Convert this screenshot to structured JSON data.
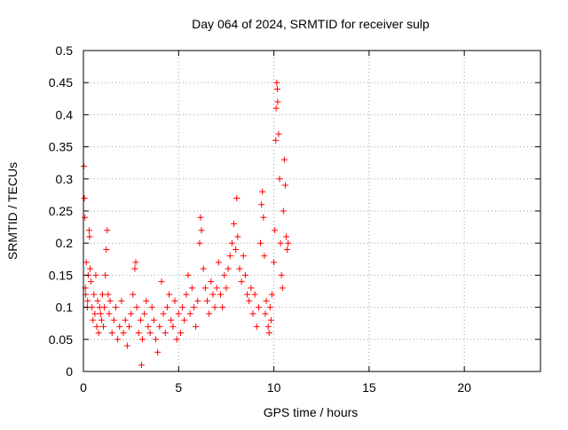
{
  "chart_data": {
    "type": "scatter",
    "title": "Day 064 of 2024, SRMTID for receiver sulp",
    "xlabel": "GPS time / hours",
    "ylabel": "SRMTID / TECUs",
    "xlim": [
      0,
      24
    ],
    "ylim": [
      0,
      0.5
    ],
    "xticks": [
      0,
      5,
      10,
      15,
      20
    ],
    "xtick_labels": [
      "0",
      "5",
      "10",
      "15",
      "20"
    ],
    "yticks": [
      0,
      0.05,
      0.1,
      0.15,
      0.2,
      0.25,
      0.3,
      0.35,
      0.4,
      0.45,
      0.5
    ],
    "ytick_labels": [
      "0",
      "0.05",
      "0.1",
      "0.15",
      "0.2",
      "0.25",
      "0.3",
      "0.35",
      "0.4",
      "0.45",
      "0.5"
    ],
    "grid": true,
    "marker": "+",
    "color": "#ff0000",
    "series": [
      {
        "name": "sulp",
        "points": [
          [
            0.02,
            0.32
          ],
          [
            0.05,
            0.27
          ],
          [
            0.08,
            0.24
          ],
          [
            0.1,
            0.13
          ],
          [
            0.12,
            0.12
          ],
          [
            0.15,
            0.17
          ],
          [
            0.2,
            0.1
          ],
          [
            0.22,
            0.11
          ],
          [
            0.25,
            0.15
          ],
          [
            0.3,
            0.22
          ],
          [
            0.32,
            0.21
          ],
          [
            0.35,
            0.16
          ],
          [
            0.4,
            0.14
          ],
          [
            0.45,
            0.1
          ],
          [
            0.5,
            0.08
          ],
          [
            0.55,
            0.12
          ],
          [
            0.6,
            0.09
          ],
          [
            0.65,
            0.15
          ],
          [
            0.7,
            0.07
          ],
          [
            0.75,
            0.11
          ],
          [
            0.8,
            0.06
          ],
          [
            0.85,
            0.1
          ],
          [
            0.9,
            0.09
          ],
          [
            0.95,
            0.08
          ],
          [
            1.0,
            0.12
          ],
          [
            1.05,
            0.07
          ],
          [
            1.1,
            0.1
          ],
          [
            1.15,
            0.15
          ],
          [
            1.2,
            0.19
          ],
          [
            1.25,
            0.22
          ],
          [
            1.3,
            0.12
          ],
          [
            1.35,
            0.09
          ],
          [
            1.4,
            0.11
          ],
          [
            1.5,
            0.06
          ],
          [
            1.6,
            0.08
          ],
          [
            1.7,
            0.1
          ],
          [
            1.8,
            0.05
          ],
          [
            1.9,
            0.07
          ],
          [
            2.0,
            0.11
          ],
          [
            2.1,
            0.06
          ],
          [
            2.2,
            0.08
          ],
          [
            2.3,
            0.04
          ],
          [
            2.4,
            0.07
          ],
          [
            2.5,
            0.09
          ],
          [
            2.6,
            0.12
          ],
          [
            2.7,
            0.16
          ],
          [
            2.75,
            0.17
          ],
          [
            2.8,
            0.1
          ],
          [
            2.9,
            0.06
          ],
          [
            3.0,
            0.08
          ],
          [
            3.05,
            0.01
          ],
          [
            3.1,
            0.05
          ],
          [
            3.2,
            0.09
          ],
          [
            3.3,
            0.11
          ],
          [
            3.4,
            0.07
          ],
          [
            3.5,
            0.06
          ],
          [
            3.6,
            0.1
          ],
          [
            3.7,
            0.08
          ],
          [
            3.8,
            0.05
          ],
          [
            3.9,
            0.03
          ],
          [
            4.0,
            0.07
          ],
          [
            4.1,
            0.14
          ],
          [
            4.2,
            0.09
          ],
          [
            4.3,
            0.06
          ],
          [
            4.4,
            0.1
          ],
          [
            4.5,
            0.12
          ],
          [
            4.6,
            0.08
          ],
          [
            4.7,
            0.07
          ],
          [
            4.8,
            0.11
          ],
          [
            4.9,
            0.05
          ],
          [
            5.0,
            0.09
          ],
          [
            5.1,
            0.06
          ],
          [
            5.2,
            0.1
          ],
          [
            5.3,
            0.08
          ],
          [
            5.4,
            0.12
          ],
          [
            5.5,
            0.15
          ],
          [
            5.6,
            0.09
          ],
          [
            5.7,
            0.13
          ],
          [
            5.8,
            0.1
          ],
          [
            5.9,
            0.07
          ],
          [
            6.0,
            0.11
          ],
          [
            6.1,
            0.2
          ],
          [
            6.15,
            0.24
          ],
          [
            6.2,
            0.22
          ],
          [
            6.3,
            0.16
          ],
          [
            6.4,
            0.13
          ],
          [
            6.5,
            0.11
          ],
          [
            6.6,
            0.09
          ],
          [
            6.7,
            0.14
          ],
          [
            6.8,
            0.12
          ],
          [
            6.9,
            0.1
          ],
          [
            7.0,
            0.13
          ],
          [
            7.1,
            0.17
          ],
          [
            7.2,
            0.12
          ],
          [
            7.3,
            0.1
          ],
          [
            7.4,
            0.15
          ],
          [
            7.5,
            0.13
          ],
          [
            7.6,
            0.16
          ],
          [
            7.7,
            0.18
          ],
          [
            7.8,
            0.2
          ],
          [
            7.9,
            0.23
          ],
          [
            8.0,
            0.19
          ],
          [
            8.05,
            0.27
          ],
          [
            8.1,
            0.21
          ],
          [
            8.2,
            0.16
          ],
          [
            8.3,
            0.14
          ],
          [
            8.4,
            0.18
          ],
          [
            8.5,
            0.15
          ],
          [
            8.6,
            0.12
          ],
          [
            8.7,
            0.11
          ],
          [
            8.8,
            0.13
          ],
          [
            8.9,
            0.09
          ],
          [
            9.0,
            0.12
          ],
          [
            9.1,
            0.07
          ],
          [
            9.2,
            0.1
          ],
          [
            9.3,
            0.2
          ],
          [
            9.35,
            0.26
          ],
          [
            9.4,
            0.28
          ],
          [
            9.45,
            0.24
          ],
          [
            9.5,
            0.18
          ],
          [
            9.55,
            0.09
          ],
          [
            9.6,
            0.11
          ],
          [
            9.7,
            0.07
          ],
          [
            9.75,
            0.06
          ],
          [
            9.8,
            0.1
          ],
          [
            9.85,
            0.08
          ],
          [
            9.9,
            0.12
          ],
          [
            10.0,
            0.17
          ],
          [
            10.05,
            0.22
          ],
          [
            10.1,
            0.36
          ],
          [
            10.12,
            0.41
          ],
          [
            10.15,
            0.45
          ],
          [
            10.18,
            0.44
          ],
          [
            10.2,
            0.42
          ],
          [
            10.25,
            0.37
          ],
          [
            10.3,
            0.3
          ],
          [
            10.35,
            0.2
          ],
          [
            10.4,
            0.15
          ],
          [
            10.45,
            0.13
          ],
          [
            10.5,
            0.25
          ],
          [
            10.55,
            0.33
          ],
          [
            10.6,
            0.29
          ],
          [
            10.65,
            0.21
          ],
          [
            10.7,
            0.19
          ],
          [
            10.75,
            0.2
          ]
        ]
      }
    ]
  }
}
